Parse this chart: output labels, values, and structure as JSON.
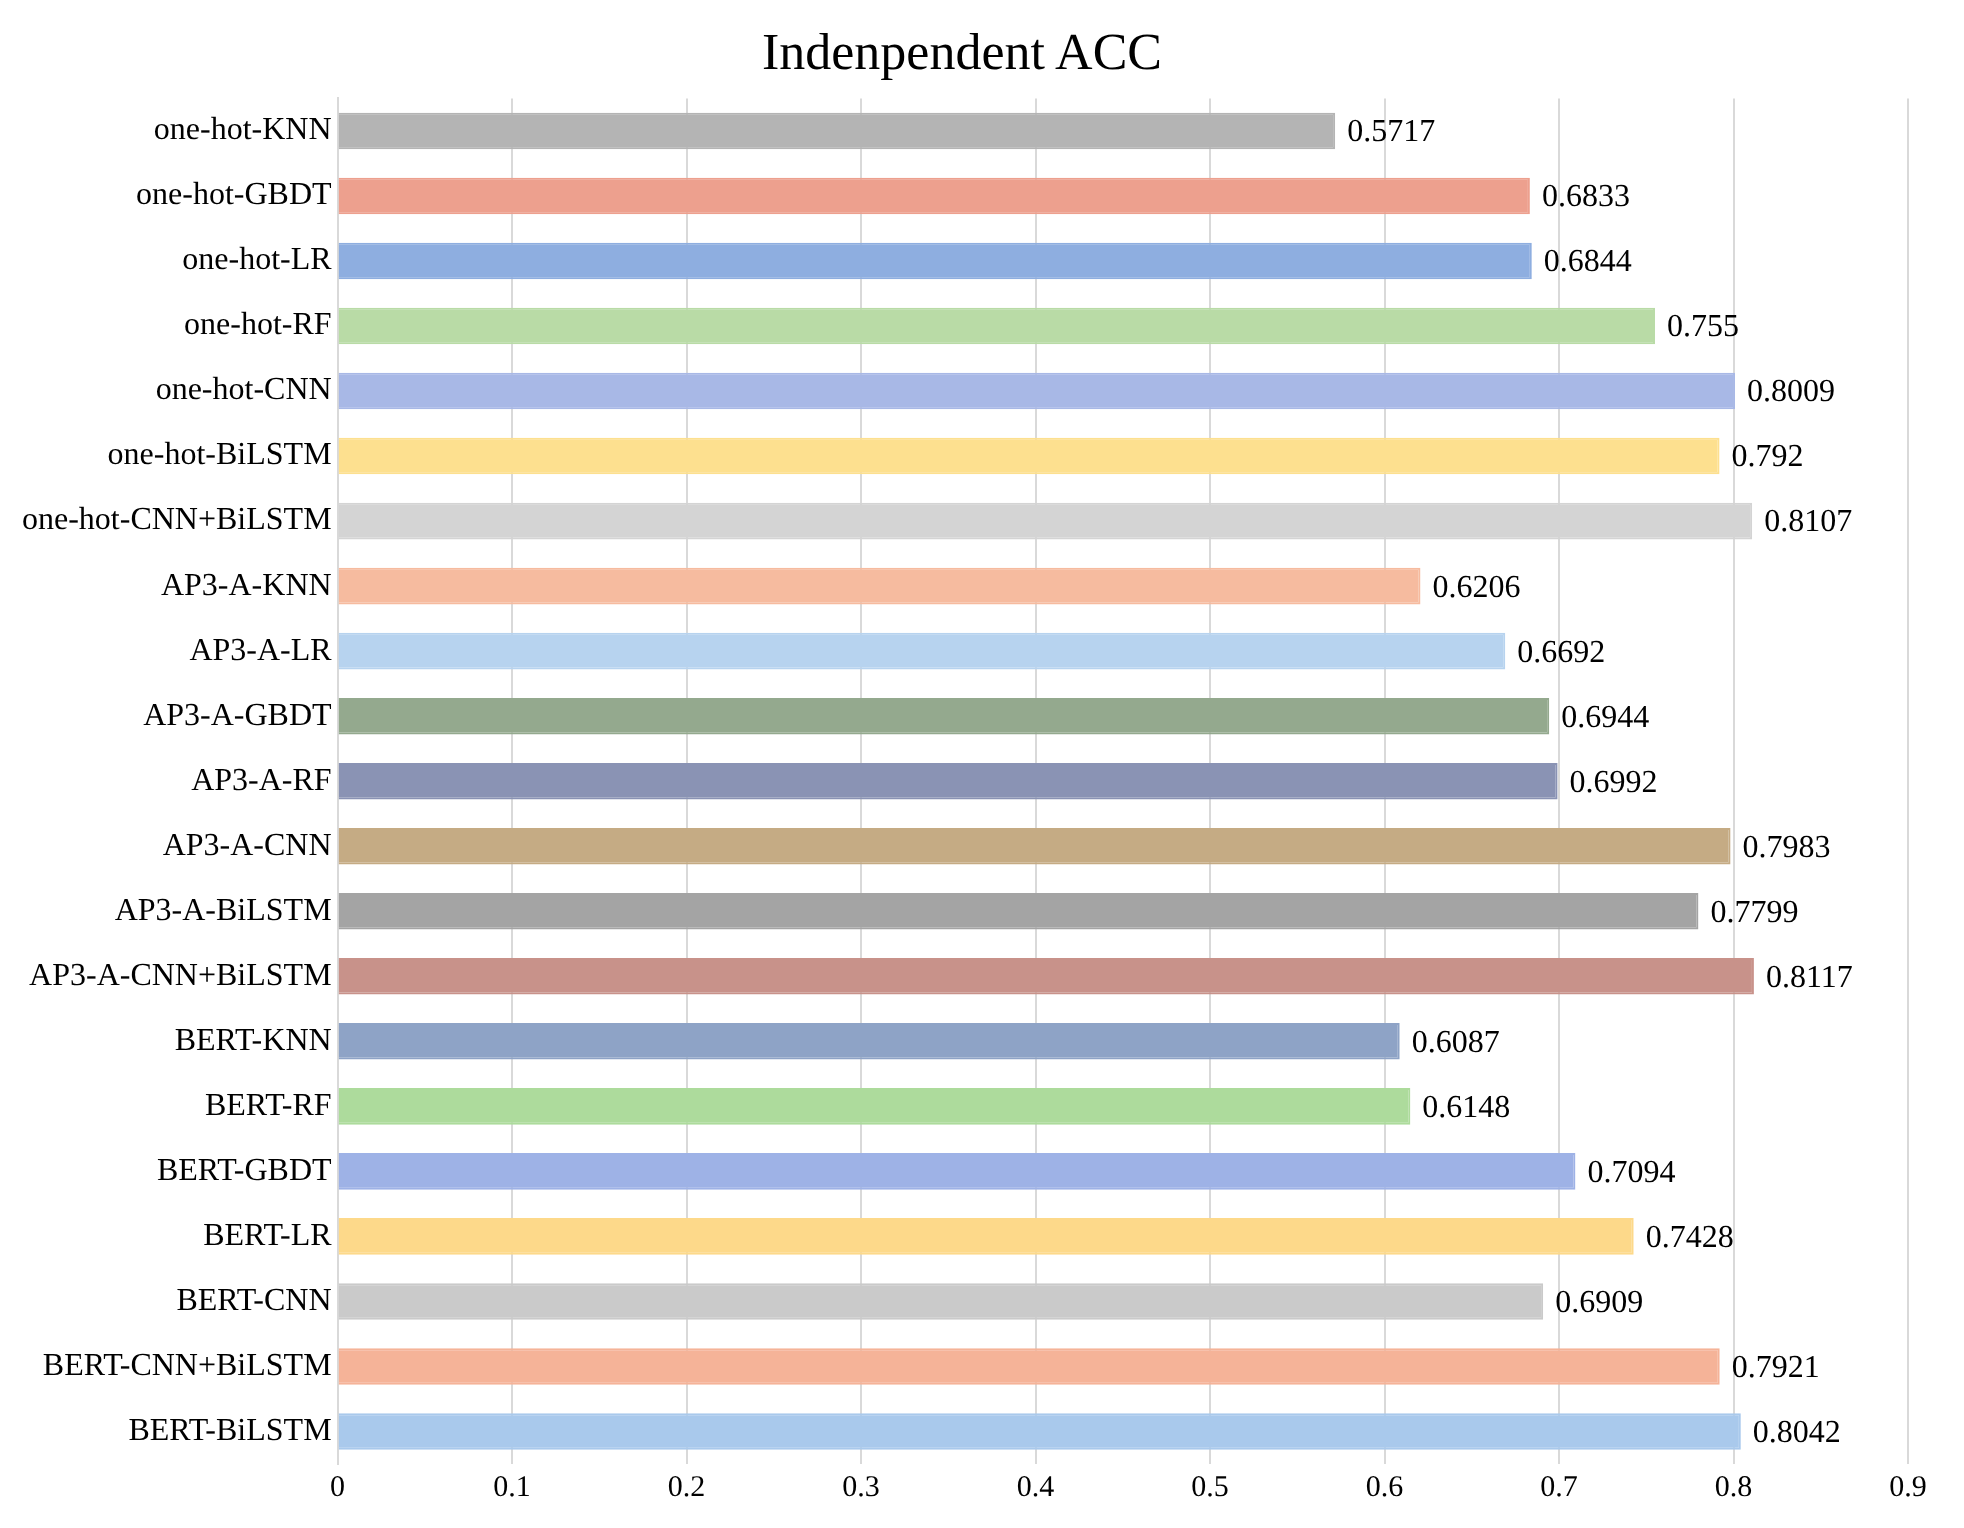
{
  "chart_data": {
    "type": "bar",
    "orientation": "horizontal",
    "title": "Indenpendent ACC",
    "categories": [
      "one-hot-KNN",
      "one-hot-GBDT",
      "one-hot-LR",
      "one-hot-RF",
      "one-hot-CNN",
      "one-hot-BiLSTM",
      "one-hot-CNN+BiLSTM",
      "AP3-A-KNN",
      "AP3-A-LR",
      "AP3-A-GBDT",
      "AP3-A-RF",
      "AP3-A-CNN",
      "AP3-A-BiLSTM",
      "AP3-A-CNN+BiLSTM",
      "BERT-KNN",
      "BERT-RF",
      "BERT-GBDT",
      "BERT-LR",
      "BERT-CNN",
      "BERT-CNN+BiLSTM",
      "BERT-BiLSTM"
    ],
    "values": [
      0.5717,
      0.6833,
      0.6844,
      0.755,
      0.8009,
      0.792,
      0.8107,
      0.6206,
      0.6692,
      0.6944,
      0.6992,
      0.7983,
      0.7799,
      0.8117,
      0.6087,
      0.6148,
      0.7094,
      0.7428,
      0.6909,
      0.7921,
      0.8042
    ],
    "colors": [
      "#b4b4b4",
      "#eda08e",
      "#8eaee0",
      "#b9dba6",
      "#a8b8e6",
      "#fde08f",
      "#d4d4d4",
      "#f6bb9f",
      "#b7d3ef",
      "#94a98e",
      "#8a93b4",
      "#c5ab84",
      "#a4a4a4",
      "#c8928a",
      "#8ea3c6",
      "#addb9c",
      "#9eb2e6",
      "#fdd98a",
      "#cacaca",
      "#f5b398",
      "#a9c9ec"
    ],
    "xlim": [
      0,
      0.9
    ],
    "xticks": [
      0,
      0.1,
      0.2,
      0.3,
      0.4,
      0.5,
      0.6,
      0.7,
      0.8,
      0.9
    ],
    "grid": "x",
    "data_labels": true,
    "legend": false
  }
}
